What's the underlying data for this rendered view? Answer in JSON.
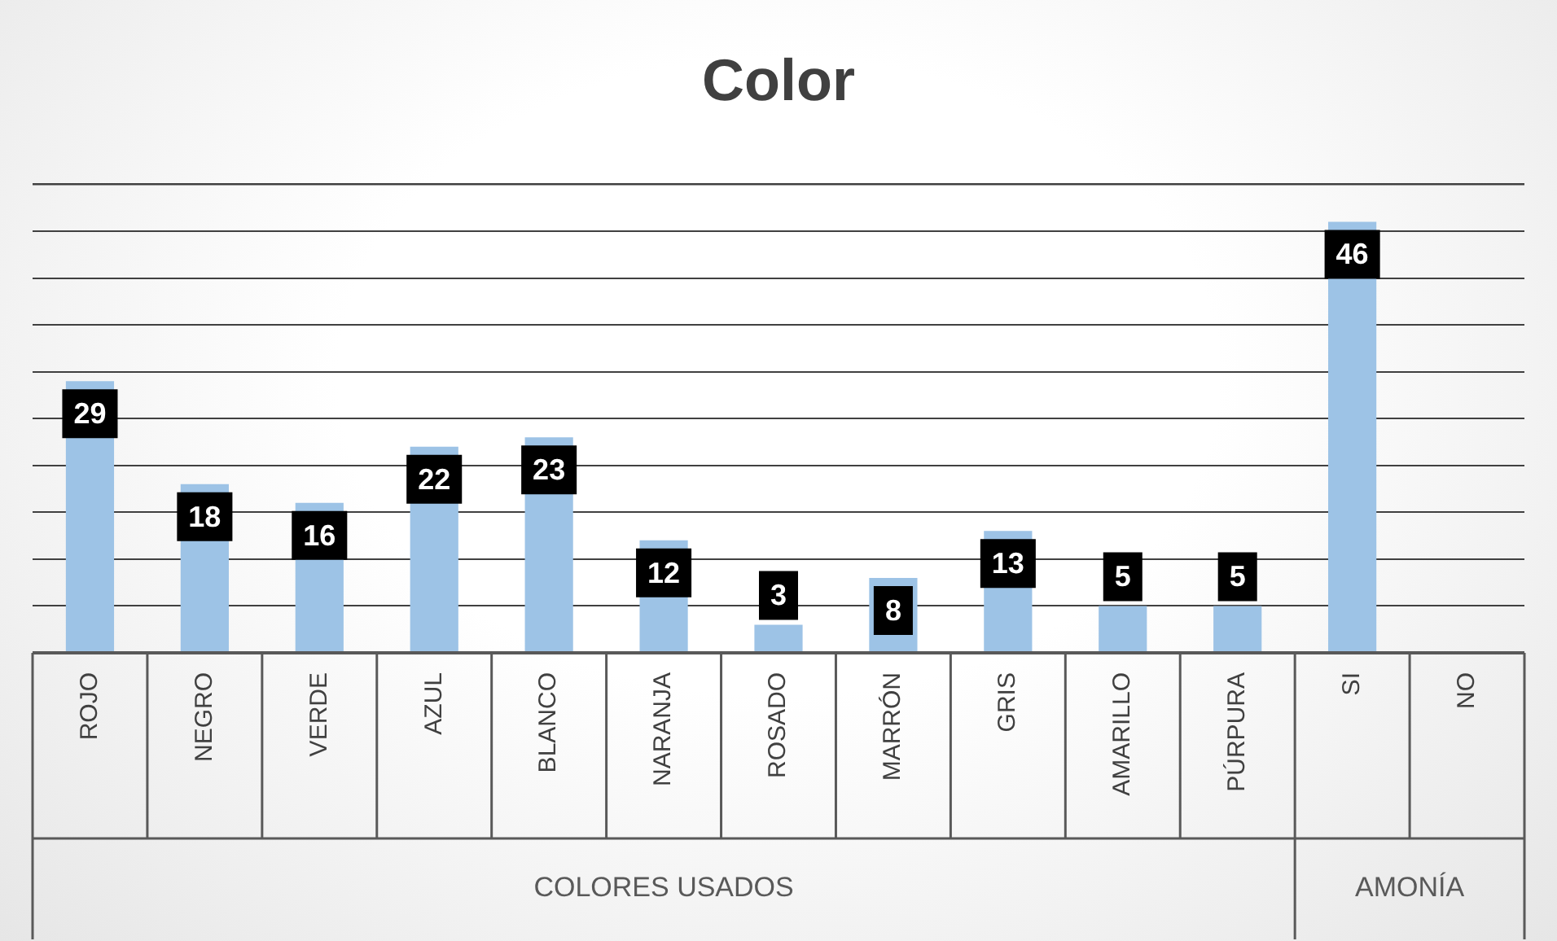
{
  "chart_data": {
    "type": "bar",
    "title": "Color",
    "categories": [
      "ROJO",
      "NEGRO",
      "VERDE",
      "AZUL",
      "BLANCO",
      "NARANJA",
      "ROSADO",
      "MARRÓN",
      "GRIS",
      "AMARILLO",
      "PÚRPURA",
      "SI",
      "NO"
    ],
    "values": [
      29,
      18,
      16,
      22,
      23,
      12,
      3,
      8,
      13,
      5,
      5,
      46,
      null
    ],
    "color": "#9dc3e6",
    "ylim": [
      0,
      50
    ],
    "grid": "y",
    "tick_labels": "x",
    "data_labels": true,
    "legend": false,
    "annotations": [
      "COLORES USADOS",
      "AMONÍA"
    ]
  }
}
